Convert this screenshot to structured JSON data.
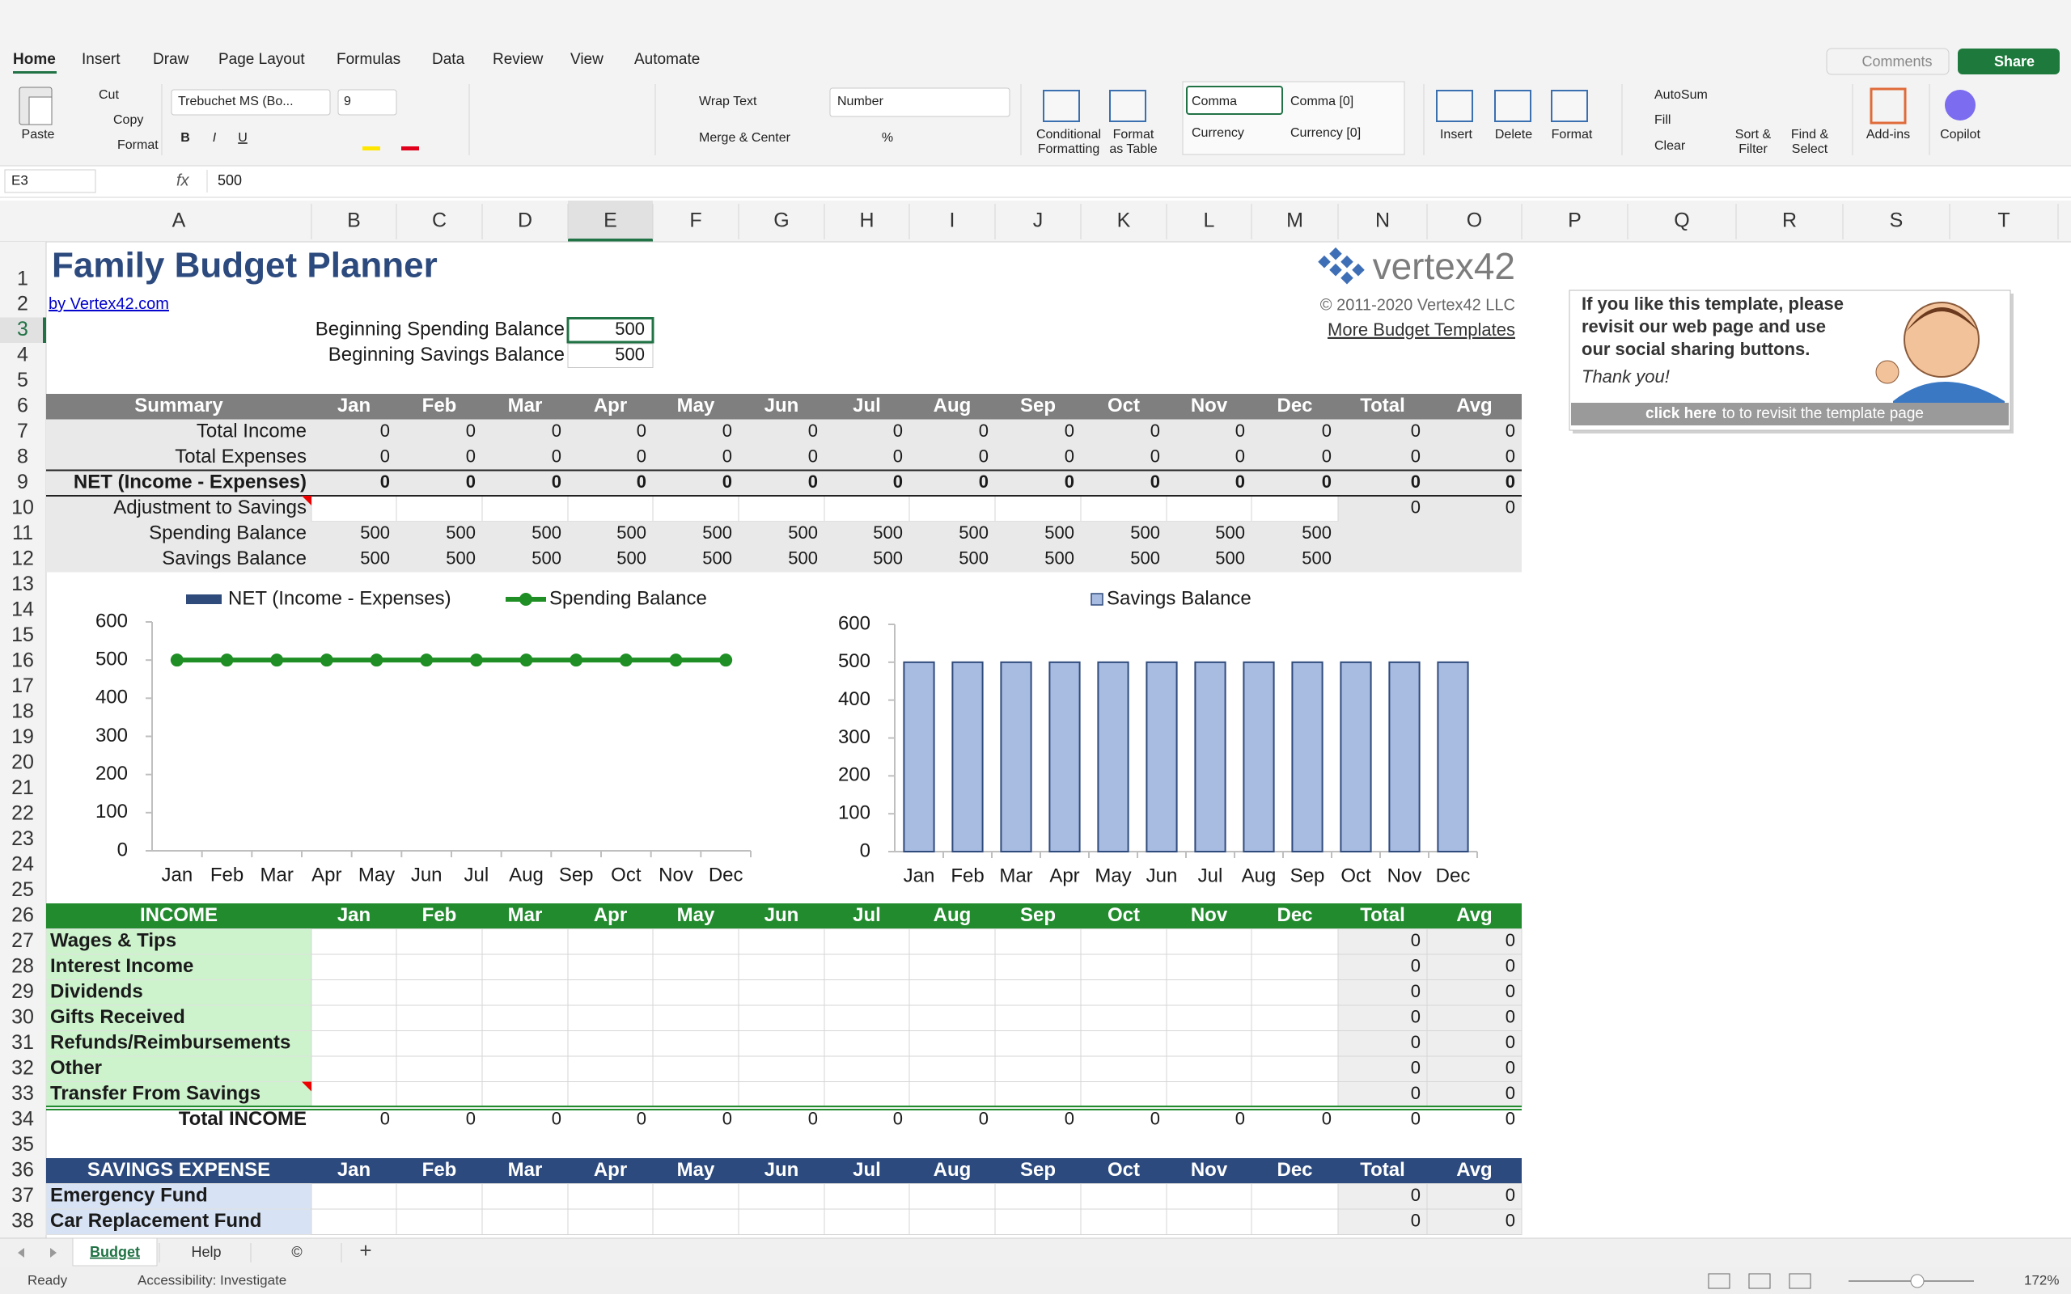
{
  "ribbon": {
    "tabs": [
      "Home",
      "Insert",
      "Draw",
      "Page Layout",
      "Formulas",
      "Data",
      "Review",
      "View",
      "Automate"
    ],
    "paste": "Paste",
    "cut": "Cut",
    "copy": "Copy",
    "format_painter": "Format",
    "font_name": "Trebuchet MS (Bo...",
    "font_size": 9,
    "bold": "B",
    "italic": "I",
    "underline": "U",
    "wrap_text": "Wrap Text",
    "merge_center": "Merge & Center",
    "number_format": "Number",
    "percent": "%",
    "conditional_formatting": [
      "Conditional",
      "Formatting"
    ],
    "format_as_table": [
      "Format",
      "as Table"
    ],
    "styles": [
      "Comma",
      "Comma [0]",
      "Currency",
      "Currency [0]"
    ],
    "insert": "Insert",
    "delete": "Delete",
    "format": "Format",
    "autosum": "AutoSum",
    "fill": "Fill",
    "clear": "Clear",
    "sort_filter": [
      "Sort &",
      "Filter"
    ],
    "find_select": [
      "Find &",
      "Select"
    ],
    "add_ins": "Add-ins",
    "copilot": "Copilot",
    "comments": "Comments",
    "share": "Share"
  },
  "formula_bar": {
    "name_box": "E3",
    "fx": "fx",
    "content": 500
  },
  "columns": [
    "A",
    "B",
    "C",
    "D",
    "E",
    "F",
    "G",
    "H",
    "I",
    "J",
    "K",
    "L",
    "M",
    "N",
    "O",
    "P",
    "Q",
    "R",
    "S",
    "T"
  ],
  "rows": [
    1,
    2,
    3,
    4,
    5,
    6,
    7,
    8,
    9,
    10,
    11,
    12,
    13,
    14,
    15,
    16,
    17,
    18,
    19,
    20,
    21,
    22,
    23,
    24,
    25,
    26,
    27,
    28,
    29,
    30,
    31,
    32,
    33,
    34,
    35,
    36,
    37,
    38
  ],
  "sheet": {
    "title": "Family Budget Planner",
    "byline": "by Vertex42.com",
    "beginning": [
      {
        "label": "Beginning Spending Balance",
        "value": 500
      },
      {
        "label": "Beginning Savings Balance",
        "value": 500
      }
    ],
    "logo": "vertex42",
    "copyright": "© 2011-2020 Vertex42 LLC",
    "more_link": "More Budget Templates",
    "promo": {
      "text": [
        "If you like this template, please",
        "revisit our web page and use",
        "our social sharing buttons."
      ],
      "thanks": "Thank you!",
      "link": "click here",
      "link_rest": "to to revisit the template page"
    },
    "summary": {
      "header": [
        "Summary",
        "Jan",
        "Feb",
        "Mar",
        "Apr",
        "May",
        "Jun",
        "Jul",
        "Aug",
        "Sep",
        "Oct",
        "Nov",
        "Dec",
        "Total",
        "Avg"
      ],
      "rows": [
        {
          "label": "Total Income",
          "values": [
            0,
            0,
            0,
            0,
            0,
            0,
            0,
            0,
            0,
            0,
            0,
            0,
            0,
            0
          ]
        },
        {
          "label": "Total Expenses",
          "values": [
            0,
            0,
            0,
            0,
            0,
            0,
            0,
            0,
            0,
            0,
            0,
            0,
            0,
            0
          ]
        },
        {
          "label": "NET (Income - Expenses)",
          "values": [
            0,
            0,
            0,
            0,
            0,
            0,
            0,
            0,
            0,
            0,
            0,
            0,
            0,
            0
          ]
        },
        {
          "label": "Adjustment to Savings",
          "values": [
            null,
            null,
            null,
            null,
            null,
            null,
            null,
            null,
            null,
            null,
            null,
            null,
            0,
            0
          ]
        },
        {
          "label": "Spending Balance",
          "values": [
            500,
            500,
            500,
            500,
            500,
            500,
            500,
            500,
            500,
            500,
            500,
            500,
            null,
            null
          ]
        },
        {
          "label": "Savings Balance",
          "values": [
            500,
            500,
            500,
            500,
            500,
            500,
            500,
            500,
            500,
            500,
            500,
            500,
            null,
            null
          ]
        }
      ]
    },
    "income": {
      "header": [
        "INCOME",
        "Jan",
        "Feb",
        "Mar",
        "Apr",
        "May",
        "Jun",
        "Jul",
        "Aug",
        "Sep",
        "Oct",
        "Nov",
        "Dec",
        "Total",
        "Avg"
      ],
      "rows": [
        {
          "label": "Wages & Tips",
          "values": [
            null,
            null,
            null,
            null,
            null,
            null,
            null,
            null,
            null,
            null,
            null,
            null,
            0,
            0
          ]
        },
        {
          "label": "Interest Income",
          "values": [
            null,
            null,
            null,
            null,
            null,
            null,
            null,
            null,
            null,
            null,
            null,
            null,
            0,
            0
          ]
        },
        {
          "label": "Dividends",
          "values": [
            null,
            null,
            null,
            null,
            null,
            null,
            null,
            null,
            null,
            null,
            null,
            null,
            0,
            0
          ]
        },
        {
          "label": "Gifts Received",
          "values": [
            null,
            null,
            null,
            null,
            null,
            null,
            null,
            null,
            null,
            null,
            null,
            null,
            0,
            0
          ]
        },
        {
          "label": "Refunds/Reimbursements",
          "values": [
            null,
            null,
            null,
            null,
            null,
            null,
            null,
            null,
            null,
            null,
            null,
            null,
            0,
            0
          ]
        },
        {
          "label": "Other",
          "values": [
            null,
            null,
            null,
            null,
            null,
            null,
            null,
            null,
            null,
            null,
            null,
            null,
            0,
            0
          ]
        },
        {
          "label": "Transfer From Savings",
          "values": [
            null,
            null,
            null,
            null,
            null,
            null,
            null,
            null,
            null,
            null,
            null,
            null,
            0,
            0
          ]
        }
      ],
      "total": {
        "label": "Total INCOME",
        "values": [
          0,
          0,
          0,
          0,
          0,
          0,
          0,
          0,
          0,
          0,
          0,
          0,
          0,
          0
        ]
      }
    },
    "savings_expense": {
      "header": [
        "SAVINGS EXPENSE",
        "Jan",
        "Feb",
        "Mar",
        "Apr",
        "May",
        "Jun",
        "Jul",
        "Aug",
        "Sep",
        "Oct",
        "Nov",
        "Dec",
        "Total",
        "Avg"
      ],
      "rows": [
        {
          "label": "Emergency Fund",
          "values": [
            null,
            null,
            null,
            null,
            null,
            null,
            null,
            null,
            null,
            null,
            null,
            null,
            0,
            0
          ]
        },
        {
          "label": "Car Replacement Fund",
          "values": [
            null,
            null,
            null,
            null,
            null,
            null,
            null,
            null,
            null,
            null,
            null,
            null,
            0,
            0
          ]
        }
      ]
    }
  },
  "chart_data": [
    {
      "type": "line",
      "categories": [
        "Jan",
        "Feb",
        "Mar",
        "Apr",
        "May",
        "Jun",
        "Jul",
        "Aug",
        "Sep",
        "Oct",
        "Nov",
        "Dec"
      ],
      "series": [
        {
          "name": "NET (Income - Expenses)",
          "type": "bar",
          "color": "#2f4b7c",
          "values": [
            0,
            0,
            0,
            0,
            0,
            0,
            0,
            0,
            0,
            0,
            0,
            0
          ]
        },
        {
          "name": "Spending Balance",
          "type": "line",
          "color": "#1f8f25",
          "values": [
            500,
            500,
            500,
            500,
            500,
            500,
            500,
            500,
            500,
            500,
            500,
            500
          ]
        }
      ],
      "ylim": [
        0,
        600
      ],
      "yticks": [
        0,
        100,
        200,
        300,
        400,
        500,
        600
      ]
    },
    {
      "type": "bar",
      "categories": [
        "Jan",
        "Feb",
        "Mar",
        "Apr",
        "May",
        "Jun",
        "Jul",
        "Aug",
        "Sep",
        "Oct",
        "Nov",
        "Dec"
      ],
      "series": [
        {
          "name": "Savings Balance",
          "color": "#a8bbe1",
          "values": [
            500,
            500,
            500,
            500,
            500,
            500,
            500,
            500,
            500,
            500,
            500,
            500
          ]
        }
      ],
      "ylim": [
        0,
        600
      ],
      "yticks": [
        0,
        100,
        200,
        300,
        400,
        500,
        600
      ]
    }
  ],
  "sheet_tabs": [
    "Budget",
    "Help",
    "©"
  ],
  "add_sheet": "+",
  "status": {
    "ready": "Ready",
    "accessibility": "Accessibility: Investigate",
    "zoom": "172%"
  }
}
